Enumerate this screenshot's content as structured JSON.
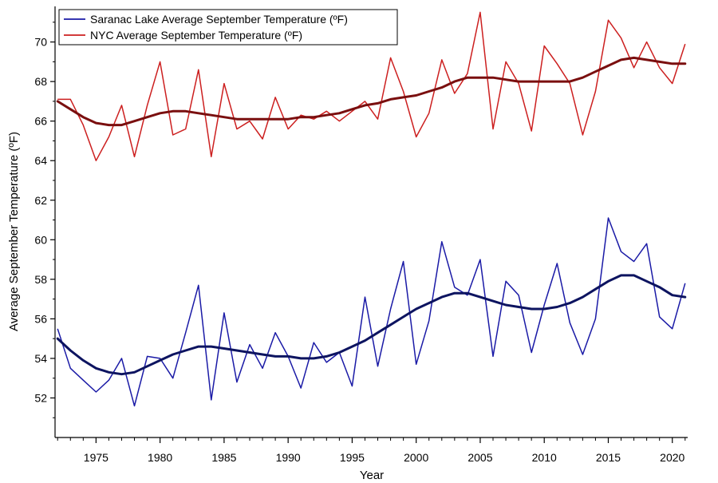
{
  "chart_data": {
    "type": "line",
    "title": "",
    "xlabel": "Year",
    "ylabel": "Average September Temperature (ºF)",
    "xlim": [
      1971.8,
      2021.2
    ],
    "ylim": [
      50.0,
      71.8
    ],
    "x_ticks": [
      1975,
      1980,
      1985,
      1990,
      1995,
      2000,
      2005,
      2010,
      2015,
      2020
    ],
    "x_tick_labels": [
      "1975",
      "1980",
      "1985",
      "1990",
      "1995",
      "2000",
      "2005",
      "2010",
      "2015",
      "2020"
    ],
    "y_ticks": [
      52,
      54,
      56,
      58,
      60,
      62,
      64,
      66,
      68,
      70
    ],
    "y_tick_labels": [
      "52",
      "54",
      "56",
      "58",
      "60",
      "62",
      "64",
      "66",
      "68",
      "70"
    ],
    "legend_position": "top-left",
    "x": [
      1972,
      1973,
      1974,
      1975,
      1976,
      1977,
      1978,
      1979,
      1980,
      1981,
      1982,
      1983,
      1984,
      1985,
      1986,
      1987,
      1988,
      1989,
      1990,
      1991,
      1992,
      1993,
      1994,
      1995,
      1996,
      1997,
      1998,
      1999,
      2000,
      2001,
      2002,
      2003,
      2004,
      2005,
      2006,
      2007,
      2008,
      2009,
      2010,
      2011,
      2012,
      2013,
      2014,
      2015,
      2016,
      2017,
      2018,
      2019,
      2020,
      2021
    ],
    "series": [
      {
        "name": "Saranac Lake Average September Temperature (ºF)",
        "color": "#1a1aa6",
        "trend_color": "#0d1460",
        "values": [
          55.5,
          53.5,
          52.9,
          52.3,
          52.9,
          54.0,
          51.6,
          54.1,
          54.0,
          53.0,
          55.3,
          57.7,
          51.9,
          56.3,
          52.8,
          54.7,
          53.5,
          55.3,
          54.1,
          52.5,
          54.8,
          53.8,
          54.3,
          52.6,
          57.1,
          53.6,
          56.5,
          58.9,
          53.7,
          55.9,
          59.9,
          57.6,
          57.2,
          59.0,
          54.1,
          57.9,
          57.2,
          54.3,
          56.7,
          58.8,
          55.8,
          54.2,
          56.0,
          61.1,
          59.4,
          58.9,
          59.8,
          56.1,
          55.5,
          57.8
        ],
        "trend": [
          55.0,
          54.4,
          53.9,
          53.5,
          53.3,
          53.2,
          53.3,
          53.6,
          53.9,
          54.2,
          54.4,
          54.6,
          54.6,
          54.5,
          54.4,
          54.3,
          54.2,
          54.1,
          54.1,
          54.0,
          54.0,
          54.1,
          54.3,
          54.6,
          54.9,
          55.3,
          55.7,
          56.1,
          56.5,
          56.8,
          57.1,
          57.3,
          57.3,
          57.1,
          56.9,
          56.7,
          56.6,
          56.5,
          56.5,
          56.6,
          56.8,
          57.1,
          57.5,
          57.9,
          58.2,
          58.2,
          57.9,
          57.6,
          57.2,
          57.1
        ]
      },
      {
        "name": "NYC Average September Temperature (ºF)",
        "color": "#cc1f1f",
        "trend_color": "#7a0f0f",
        "values": [
          67.1,
          67.1,
          65.8,
          64.0,
          65.2,
          66.8,
          64.2,
          66.8,
          69.0,
          65.3,
          65.6,
          68.6,
          64.2,
          67.9,
          65.6,
          66.0,
          65.1,
          67.2,
          65.6,
          66.3,
          66.1,
          66.5,
          66.0,
          66.5,
          67.0,
          66.1,
          69.2,
          67.5,
          65.2,
          66.4,
          69.1,
          67.4,
          68.4,
          71.5,
          65.6,
          69.0,
          67.9,
          65.5,
          69.8,
          68.9,
          67.9,
          65.3,
          67.5,
          71.1,
          70.2,
          68.7,
          70.0,
          68.7,
          67.9,
          69.9
        ],
        "trend": [
          67.0,
          66.6,
          66.2,
          65.9,
          65.8,
          65.8,
          66.0,
          66.2,
          66.4,
          66.5,
          66.5,
          66.4,
          66.3,
          66.2,
          66.1,
          66.1,
          66.1,
          66.1,
          66.1,
          66.2,
          66.2,
          66.3,
          66.4,
          66.6,
          66.8,
          66.9,
          67.1,
          67.2,
          67.3,
          67.5,
          67.7,
          68.0,
          68.2,
          68.2,
          68.2,
          68.1,
          68.0,
          68.0,
          68.0,
          68.0,
          68.0,
          68.2,
          68.5,
          68.8,
          69.1,
          69.2,
          69.1,
          69.0,
          68.9,
          68.9
        ]
      }
    ]
  }
}
